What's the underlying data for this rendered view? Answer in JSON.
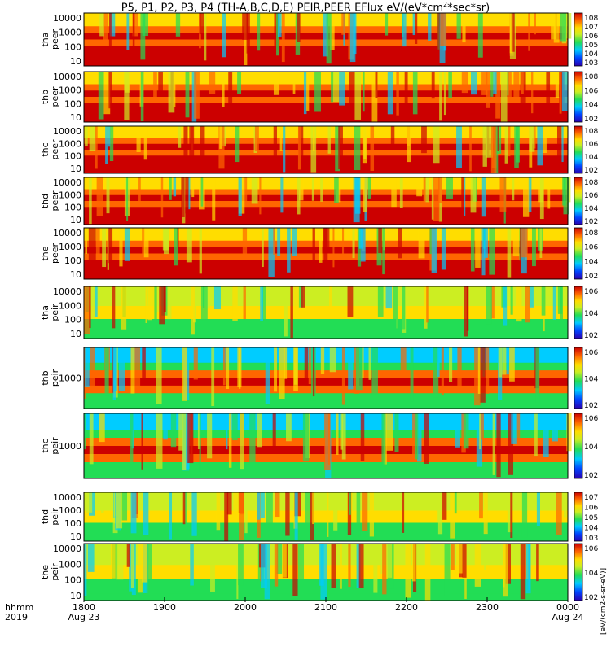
{
  "title": {
    "text": "P5, P1, P2, P3, P4 (TH-A,B,C,D,E) PEIR,PEER EFlux eV/(eV*cm",
    "sup": "2",
    "tail": "*sec*sr)"
  },
  "x_axis": {
    "row1_label": "hhmm",
    "row2_label": "2019",
    "ticks": [
      {
        "label": "1800",
        "date": "Aug 23",
        "t": 0
      },
      {
        "label": "1900",
        "date": "",
        "t": 60
      },
      {
        "label": "2000",
        "date": "",
        "t": 120
      },
      {
        "label": "2100",
        "date": "",
        "t": 180
      },
      {
        "label": "2200",
        "date": "",
        "t": 240
      },
      {
        "label": "2300",
        "date": "",
        "t": 300
      },
      {
        "label": "0000",
        "date": "Aug 24",
        "t": 360
      }
    ],
    "range": [
      0,
      360
    ]
  },
  "colorbar_unit_label": "eV/(cm^2-sec-sr-eV)",
  "colorbar_full_label": "[eV/(cm2-s-sr-eV)]",
  "colors": {
    "c0": "#ffffff",
    "black": "#000000",
    "red": "#dd0000"
  },
  "chart_data": [
    {
      "type": "heatmap",
      "ylabel1": "tha",
      "ylabel2": "peer",
      "y_ticks": [
        "10000",
        "1000",
        "100",
        "10"
      ],
      "log_scale": true,
      "cbar_ticks": [
        "10^8",
        "10^7",
        "10^6",
        "10^5",
        "10^4",
        "10^3"
      ],
      "tick_gap_top": false
    },
    {
      "type": "heatmap",
      "ylabel1": "thb",
      "ylabel2": "peer",
      "y_ticks": [
        "10000",
        "1000",
        "100",
        "10"
      ],
      "log_scale": true,
      "cbar_ticks": [
        "10^8",
        "10^6",
        "10^4",
        "10^2"
      ],
      "tick_gap_top": false
    },
    {
      "type": "heatmap",
      "ylabel1": "thc",
      "ylabel2": "peer",
      "y_ticks": [
        "10000",
        "1000",
        "100",
        "10"
      ],
      "log_scale": true,
      "cbar_ticks": [
        "10^8",
        "10^6",
        "10^4",
        "10^2"
      ],
      "tick_gap_top": false
    },
    {
      "type": "heatmap",
      "ylabel1": "thd",
      "ylabel2": "peer",
      "y_ticks": [
        "10000",
        "1000",
        "100",
        "10"
      ],
      "log_scale": true,
      "cbar_ticks": [
        "10^8",
        "10^6",
        "10^4",
        "10^2"
      ],
      "tick_gap_top": false
    },
    {
      "type": "heatmap",
      "ylabel1": "the",
      "ylabel2": "peer",
      "y_ticks": [
        "10000",
        "1000",
        "100",
        "10"
      ],
      "log_scale": true,
      "cbar_ticks": [
        "10^8",
        "10^6",
        "10^4",
        "10^2"
      ],
      "tick_gap_top": false
    },
    {
      "type": "heatmap",
      "ylabel1": "tha",
      "ylabel2": "peir",
      "y_ticks": [
        "10000",
        "1000",
        "100",
        "10"
      ],
      "log_scale": true,
      "cbar_ticks": [
        "10^6",
        "10^4",
        "10^2"
      ],
      "tick_gap_top": true
    },
    {
      "type": "heatmap",
      "ylabel1": "thb",
      "ylabel2": "peir",
      "y_ticks": [
        "1000"
      ],
      "log_scale": true,
      "cbar_ticks": [
        "10^6",
        "10^4",
        "10^2"
      ],
      "tick_gap_top": true
    },
    {
      "type": "heatmap",
      "ylabel1": "thc",
      "ylabel2": "peir",
      "y_ticks": [
        "1000"
      ],
      "log_scale": true,
      "cbar_ticks": [
        "10^6",
        "10^4",
        "10^2"
      ],
      "tick_gap_top": true
    },
    {
      "type": "heatmap",
      "ylabel1": "thd",
      "ylabel2": "peir",
      "y_ticks": [
        "10000",
        "1000",
        "100",
        "10"
      ],
      "log_scale": true,
      "cbar_ticks": [
        "10^7",
        "10^6",
        "10^5",
        "10^4",
        "10^3"
      ],
      "tick_gap_top": true
    },
    {
      "type": "heatmap",
      "ylabel1": "the",
      "ylabel2": "peir",
      "y_ticks": [
        "10000",
        "1000",
        "100",
        "10"
      ],
      "log_scale": true,
      "cbar_ticks": [
        "10^6",
        "10^4",
        "10^2"
      ],
      "tick_gap_top": true
    }
  ]
}
